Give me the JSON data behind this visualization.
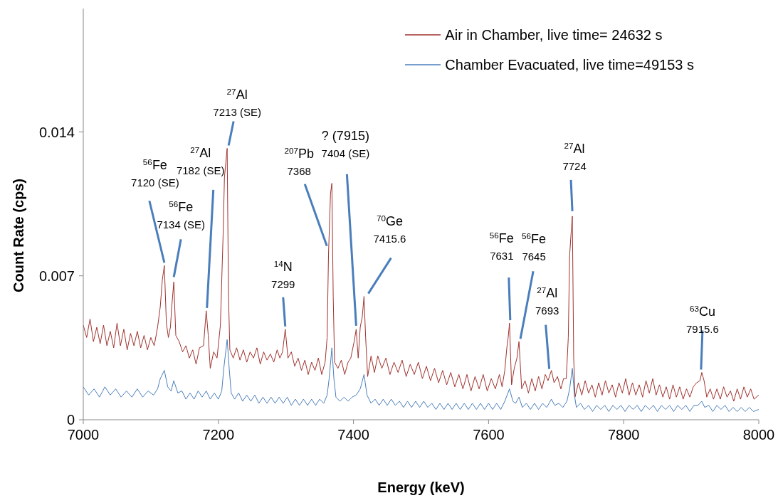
{
  "chart_data": {
    "type": "line",
    "xlabel": "Energy (keV)",
    "ylabel": "Count Rate (cps)",
    "xlim": [
      7000,
      8000
    ],
    "xticks": [
      7000,
      7200,
      7400,
      7600,
      7800,
      8000
    ],
    "ylim": [
      0,
      0.02
    ],
    "yticks": [
      0,
      0.007,
      0.014
    ],
    "grid": false,
    "legend": "top right",
    "marker": "none",
    "line_style": "solid",
    "series": [
      {
        "name": "Air in Chamber, live time= 24632 s",
        "color": "#a0322e",
        "x": [
          7000,
          7005,
          7010,
          7015,
          7020,
          7025,
          7030,
          7035,
          7040,
          7045,
          7050,
          7055,
          7060,
          7065,
          7070,
          7075,
          7080,
          7085,
          7090,
          7095,
          7100,
          7105,
          7110,
          7114,
          7117,
          7120,
          7123,
          7126,
          7129,
          7131,
          7134,
          7137,
          7142,
          7147,
          7152,
          7157,
          7162,
          7167,
          7172,
          7178,
          7182,
          7185,
          7188,
          7193,
          7198,
          7203,
          7207,
          7209,
          7211,
          7213,
          7215,
          7217,
          7222,
          7227,
          7232,
          7237,
          7242,
          7247,
          7252,
          7257,
          7262,
          7267,
          7272,
          7277,
          7282,
          7287,
          7291,
          7295,
          7299,
          7303,
          7308,
          7313,
          7318,
          7323,
          7328,
          7333,
          7338,
          7343,
          7348,
          7353,
          7358,
          7361,
          7363,
          7366,
          7368,
          7370,
          7372,
          7377,
          7382,
          7387,
          7392,
          7396,
          7401,
          7404,
          7407,
          7410,
          7413,
          7415.6,
          7418,
          7421,
          7426,
          7431,
          7436,
          7442,
          7448,
          7454,
          7460,
          7466,
          7472,
          7478,
          7484,
          7490,
          7496,
          7502,
          7508,
          7514,
          7520,
          7526,
          7532,
          7538,
          7544,
          7550,
          7556,
          7562,
          7568,
          7574,
          7580,
          7586,
          7592,
          7598,
          7604,
          7610,
          7616,
          7620,
          7624,
          7627,
          7629,
          7631,
          7634,
          7638,
          7642,
          7645,
          7649,
          7654,
          7659,
          7664,
          7669,
          7674,
          7679,
          7684,
          7688,
          7693,
          7697,
          7702,
          7707,
          7711,
          7715,
          7718,
          7720,
          7722,
          7724,
          7726,
          7728,
          7733,
          7738,
          7743,
          7748,
          7753,
          7758,
          7763,
          7768,
          7773,
          7778,
          7783,
          7788,
          7793,
          7798,
          7803,
          7808,
          7813,
          7818,
          7823,
          7828,
          7833,
          7838,
          7843,
          7848,
          7853,
          7858,
          7863,
          7868,
          7873,
          7878,
          7883,
          7888,
          7893,
          7898,
          7903,
          7908,
          7913,
          7915.6,
          7919,
          7923,
          7928,
          7933,
          7938,
          7943,
          7948,
          7953,
          7958,
          7963,
          7968,
          7973,
          7978,
          7983,
          7988,
          7993,
          8000
        ],
        "values": [
          0.0046,
          0.004,
          0.0049,
          0.0038,
          0.0045,
          0.0037,
          0.0046,
          0.0036,
          0.0043,
          0.0035,
          0.0047,
          0.0036,
          0.0044,
          0.0034,
          0.0042,
          0.0036,
          0.0043,
          0.0035,
          0.0041,
          0.0034,
          0.004,
          0.0036,
          0.0045,
          0.0055,
          0.0068,
          0.0075,
          0.0047,
          0.004,
          0.0045,
          0.0055,
          0.0067,
          0.0041,
          0.0038,
          0.0033,
          0.0036,
          0.003,
          0.0034,
          0.0027,
          0.0035,
          0.0036,
          0.0053,
          0.0041,
          0.0025,
          0.0033,
          0.003,
          0.0046,
          0.009,
          0.0118,
          0.0125,
          0.0132,
          0.006,
          0.0034,
          0.003,
          0.0035,
          0.0029,
          0.0034,
          0.0028,
          0.0033,
          0.003,
          0.0035,
          0.0027,
          0.0033,
          0.0029,
          0.0032,
          0.0028,
          0.0034,
          0.003,
          0.0033,
          0.0044,
          0.003,
          0.0033,
          0.0026,
          0.003,
          0.0024,
          0.0029,
          0.0022,
          0.0028,
          0.0024,
          0.003,
          0.0022,
          0.0028,
          0.004,
          0.008,
          0.011,
          0.0115,
          0.006,
          0.0028,
          0.0025,
          0.0029,
          0.0022,
          0.0028,
          0.003,
          0.0038,
          0.0044,
          0.003,
          0.0045,
          0.005,
          0.006,
          0.004,
          0.0021,
          0.0031,
          0.0023,
          0.0031,
          0.0025,
          0.003,
          0.0022,
          0.0028,
          0.0023,
          0.0029,
          0.0021,
          0.0027,
          0.0022,
          0.0028,
          0.002,
          0.0026,
          0.0019,
          0.0025,
          0.0018,
          0.0024,
          0.0017,
          0.0023,
          0.0016,
          0.0022,
          0.0015,
          0.0022,
          0.0014,
          0.0021,
          0.0015,
          0.0022,
          0.0014,
          0.002,
          0.0015,
          0.0022,
          0.0016,
          0.0024,
          0.0035,
          0.004,
          0.0047,
          0.0017,
          0.0025,
          0.003,
          0.0038,
          0.0015,
          0.0019,
          0.0013,
          0.002,
          0.0014,
          0.0021,
          0.0015,
          0.0022,
          0.0019,
          0.0024,
          0.0018,
          0.0021,
          0.0015,
          0.002,
          0.002,
          0.004,
          0.008,
          0.009,
          0.0099,
          0.003,
          0.0011,
          0.0018,
          0.0012,
          0.0019,
          0.0013,
          0.0017,
          0.0011,
          0.0018,
          0.0012,
          0.0019,
          0.0013,
          0.0017,
          0.0011,
          0.0018,
          0.0013,
          0.002,
          0.0012,
          0.0018,
          0.0012,
          0.0017,
          0.0011,
          0.0019,
          0.0013,
          0.002,
          0.0012,
          0.0017,
          0.0011,
          0.0016,
          0.001,
          0.0017,
          0.0011,
          0.0016,
          0.001,
          0.0015,
          0.0011,
          0.0016,
          0.0018,
          0.0019,
          0.0023,
          0.0019,
          0.0011,
          0.0015,
          0.001,
          0.0015,
          0.001,
          0.0016,
          0.0011,
          0.0014,
          0.0009,
          0.0015,
          0.001,
          0.0016,
          0.0011,
          0.0015,
          0.001,
          0.0012
        ]
      },
      {
        "name": "Chamber Evacuated, live time=49153 s",
        "color": "#4a7ebb",
        "x": [
          7000,
          7008,
          7016,
          7024,
          7032,
          7040,
          7048,
          7056,
          7064,
          7072,
          7080,
          7088,
          7096,
          7104,
          7110,
          7114,
          7120,
          7125,
          7130,
          7134,
          7140,
          7146,
          7152,
          7158,
          7164,
          7170,
          7176,
          7182,
          7188,
          7194,
          7200,
          7205,
          7208,
          7213,
          7216,
          7219,
          7224,
          7230,
          7236,
          7242,
          7248,
          7254,
          7260,
          7266,
          7272,
          7278,
          7284,
          7290,
          7296,
          7302,
          7308,
          7314,
          7320,
          7326,
          7332,
          7338,
          7344,
          7350,
          7356,
          7361,
          7364,
          7368,
          7371,
          7374,
          7380,
          7386,
          7392,
          7398,
          7404,
          7410,
          7415.6,
          7420,
          7426,
          7432,
          7438,
          7444,
          7450,
          7456,
          7462,
          7468,
          7474,
          7480,
          7486,
          7492,
          7498,
          7504,
          7510,
          7516,
          7522,
          7528,
          7534,
          7540,
          7546,
          7552,
          7558,
          7564,
          7570,
          7576,
          7582,
          7588,
          7594,
          7600,
          7606,
          7612,
          7618,
          7624,
          7631,
          7636,
          7640,
          7645,
          7650,
          7656,
          7662,
          7668,
          7674,
          7680,
          7686,
          7693,
          7698,
          7704,
          7710,
          7716,
          7720,
          7724,
          7727,
          7730,
          7736,
          7742,
          7748,
          7754,
          7760,
          7766,
          7772,
          7778,
          7784,
          7790,
          7796,
          7802,
          7808,
          7814,
          7820,
          7826,
          7832,
          7838,
          7844,
          7850,
          7856,
          7862,
          7868,
          7874,
          7880,
          7886,
          7892,
          7898,
          7904,
          7910,
          7915.6,
          7920,
          7926,
          7932,
          7938,
          7944,
          7950,
          7956,
          7962,
          7968,
          7974,
          7980,
          7986,
          7992,
          8000
        ],
        "values": [
          0.0016,
          0.0012,
          0.0015,
          0.0011,
          0.0016,
          0.0012,
          0.0015,
          0.0011,
          0.0014,
          0.0011,
          0.0015,
          0.0011,
          0.0014,
          0.0012,
          0.0015,
          0.002,
          0.0024,
          0.0016,
          0.0014,
          0.0019,
          0.0013,
          0.0014,
          0.001,
          0.0013,
          0.001,
          0.0014,
          0.0011,
          0.0014,
          0.001,
          0.0013,
          0.001,
          0.0014,
          0.0025,
          0.0039,
          0.0025,
          0.0013,
          0.001,
          0.0013,
          0.0009,
          0.0012,
          0.0009,
          0.0012,
          0.0008,
          0.0011,
          0.0008,
          0.0011,
          0.0008,
          0.0011,
          0.0008,
          0.0011,
          0.0007,
          0.001,
          0.0007,
          0.001,
          0.0007,
          0.001,
          0.0007,
          0.001,
          0.0008,
          0.0012,
          0.002,
          0.0035,
          0.002,
          0.0011,
          0.0009,
          0.0011,
          0.0009,
          0.0011,
          0.0012,
          0.0015,
          0.0022,
          0.0012,
          0.0008,
          0.001,
          0.0007,
          0.001,
          0.0007,
          0.001,
          0.0007,
          0.0009,
          0.0006,
          0.0009,
          0.0006,
          0.0009,
          0.0006,
          0.0009,
          0.0006,
          0.0008,
          0.0005,
          0.0008,
          0.0005,
          0.0008,
          0.0005,
          0.0008,
          0.0005,
          0.0008,
          0.0005,
          0.0008,
          0.0005,
          0.0008,
          0.0005,
          0.0008,
          0.0005,
          0.0008,
          0.0005,
          0.0009,
          0.0015,
          0.0009,
          0.0008,
          0.0011,
          0.0006,
          0.0008,
          0.0005,
          0.0008,
          0.0005,
          0.0008,
          0.0006,
          0.001,
          0.0007,
          0.0008,
          0.0006,
          0.0009,
          0.0015,
          0.0025,
          0.0012,
          0.0006,
          0.0008,
          0.0005,
          0.0007,
          0.0004,
          0.0007,
          0.0005,
          0.0007,
          0.0004,
          0.0007,
          0.0005,
          0.0007,
          0.0004,
          0.0007,
          0.0005,
          0.0007,
          0.0004,
          0.0007,
          0.0005,
          0.0007,
          0.0004,
          0.0007,
          0.0005,
          0.0007,
          0.0004,
          0.0007,
          0.0005,
          0.0007,
          0.0004,
          0.0007,
          0.0007,
          0.0009,
          0.0006,
          0.0007,
          0.0004,
          0.0007,
          0.0005,
          0.0007,
          0.0004,
          0.0006,
          0.0004,
          0.0006,
          0.0004,
          0.0006,
          0.0004,
          0.0005
        ]
      }
    ],
    "annotations": [
      {
        "text": "$^{56}$Fe\n7120 (SE)",
        "x": 7120,
        "y": 0.0075
      },
      {
        "text": "$^{56}$Fe\n7134 (SE)",
        "x": 7134,
        "y": 0.0067
      },
      {
        "text": "$^{27}$Al\n7182 (SE)",
        "x": 7182,
        "y": 0.0053
      },
      {
        "text": "$^{27}$Al\n7213 (SE)",
        "x": 7213,
        "y": 0.0132
      },
      {
        "text": "$^{14}$N\n7299",
        "x": 7299,
        "y": 0.0044
      },
      {
        "text": "$^{207}$Pb\n7368",
        "x": 7368,
        "y": 0.0115
      },
      {
        "text": "? (7915)\n7404 (SE)",
        "x": 7404,
        "y": 0.0044
      },
      {
        "text": "$^{70}$Ge\n7415.6",
        "x": 7415.6,
        "y": 0.006
      },
      {
        "text": "$^{56}$Fe\n7631",
        "x": 7631,
        "y": 0.0047
      },
      {
        "text": "$^{56}$Fe\n7645",
        "x": 7645,
        "y": 0.0038
      },
      {
        "text": "$^{27}$Al\n7693",
        "x": 7693,
        "y": 0.0024
      },
      {
        "text": "$^{27}$Al\n7724",
        "x": 7724,
        "y": 0.0099
      },
      {
        "text": "$^{63}$Cu\n7915.6",
        "x": 7915.6,
        "y": 0.0023
      }
    ]
  }
}
